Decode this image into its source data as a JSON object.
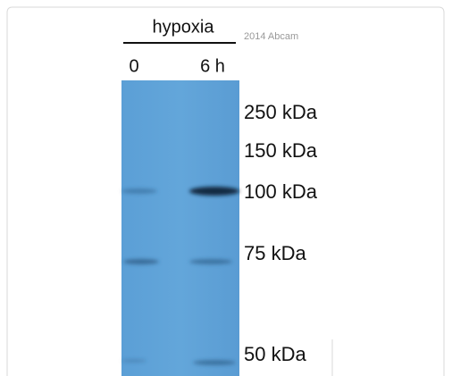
{
  "header": {
    "condition": "hypoxia",
    "lanes": [
      "0",
      "6 h"
    ],
    "copyright": "2014 Abcam"
  },
  "markers": [
    "250 kDa",
    "150 kDa",
    "100 kDa",
    "75 kDa",
    "50 kDa"
  ]
}
